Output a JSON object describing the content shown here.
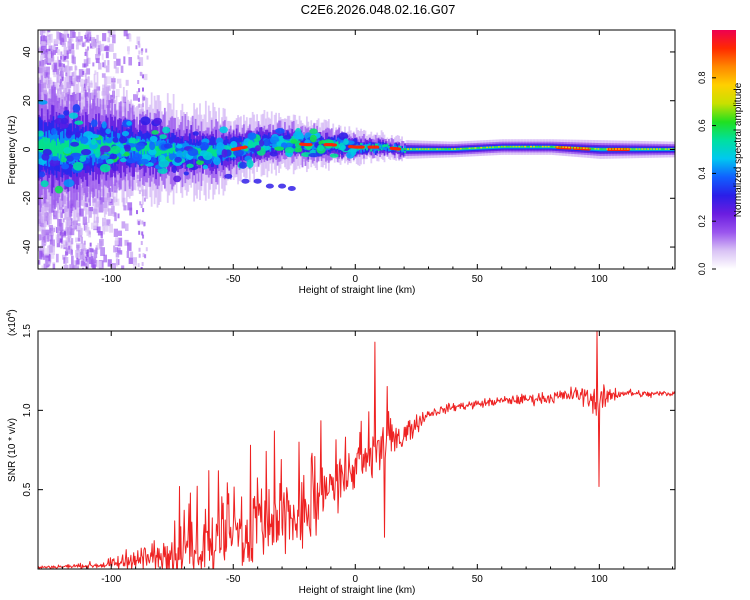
{
  "title": "C2E6.2026.048.02.16.G07",
  "chart_data": [
    {
      "type": "heatmap",
      "xlabel": "Height of straight line (km)",
      "ylabel": "Frequency (Hz)",
      "xlim": [
        -130,
        131
      ],
      "ylim": [
        -49,
        49
      ],
      "xticks": [
        -100,
        -50,
        0,
        50,
        100
      ],
      "yticks": [
        -40,
        -20,
        0,
        20,
        40
      ],
      "colorbar": {
        "label": "Normalized spectral amplitude",
        "range": [
          0,
          1
        ],
        "ticks": [
          "0.0",
          "0.2",
          "0.4",
          "0.6",
          "0.8"
        ],
        "colors": [
          "#ffffff",
          "#d9c2f5",
          "#9a55ee",
          "#6b1de0",
          "#2a1ee8",
          "#1060ff",
          "#00c8f0",
          "#00e0a0",
          "#20e020",
          "#c8e000",
          "#ffd000",
          "#ff8800",
          "#ff2a00",
          "#ee0050"
        ]
      },
      "ridge": {
        "x": [
          -130,
          -115,
          -100,
          -90,
          -80,
          -70,
          -60,
          -50,
          -40,
          -30,
          -20,
          -10,
          0,
          10,
          20,
          40,
          60,
          80,
          100,
          131
        ],
        "freq": [
          1,
          0,
          1,
          1,
          0,
          -1,
          -1,
          0,
          2,
          3,
          2,
          2,
          1,
          1,
          0,
          0,
          1,
          1,
          0,
          0
        ],
        "width": [
          10,
          9,
          7,
          6,
          6,
          5,
          5,
          4,
          3.5,
          3,
          3,
          2.5,
          2,
          1.5,
          1.2,
          1,
          1,
          1,
          1.2,
          1
        ]
      },
      "secondary_trace": {
        "x": [
          -52,
          -45,
          -40,
          -35,
          -30,
          -26
        ],
        "freq": [
          -11,
          -13,
          -13,
          -15,
          -15,
          -16
        ]
      }
    },
    {
      "type": "line",
      "xlabel": "Height of straight line (km)",
      "ylabel": "SNR (10 * v/v)",
      "y_multiplier_label": "(x10",
      "y_multiplier_exponent": "4",
      "xlim": [
        -130,
        131
      ],
      "ylim": [
        0,
        15000
      ],
      "xticks": [
        -100,
        -50,
        0,
        50,
        100
      ],
      "yticks": [
        5000,
        10000,
        15000
      ],
      "ytick_labels": [
        "0.5",
        "1.0",
        "1.5"
      ],
      "color": "#ee2222",
      "envelope": {
        "x": [
          -130,
          -110,
          -100,
          -90,
          -80,
          -70,
          -60,
          -50,
          -40,
          -30,
          -20,
          -10,
          0,
          10,
          20,
          30,
          40,
          50,
          60,
          70,
          80,
          90,
          95,
          100,
          105,
          110,
          120,
          131
        ],
        "base": [
          100,
          200,
          300,
          500,
          800,
          1200,
          1600,
          2000,
          2300,
          2800,
          3500,
          5000,
          6500,
          7500,
          8500,
          9800,
          10200,
          10400,
          10600,
          10700,
          10800,
          11000,
          10900,
          10500,
          11000,
          11100,
          11000,
          11100
        ],
        "spread": [
          80,
          150,
          300,
          600,
          1200,
          1700,
          2000,
          2200,
          2400,
          2500,
          2300,
          1800,
          1200,
          1600,
          900,
          250,
          250,
          250,
          250,
          300,
          350,
          450,
          600,
          900,
          450,
          250,
          200,
          200
        ]
      },
      "spikes": [
        {
          "x": -72,
          "value": 5200
        },
        {
          "x": -60,
          "value": 6200
        },
        {
          "x": -43,
          "value": 7800
        },
        {
          "x": -33,
          "value": 8700
        },
        {
          "x": -23,
          "value": 8000
        },
        {
          "x": 8,
          "value": 14300
        },
        {
          "x": 12,
          "value": 2000
        },
        {
          "x": 13,
          "value": 11500
        },
        {
          "x": 99,
          "value": 15000
        },
        {
          "x": 100,
          "value": 5200
        }
      ]
    }
  ]
}
